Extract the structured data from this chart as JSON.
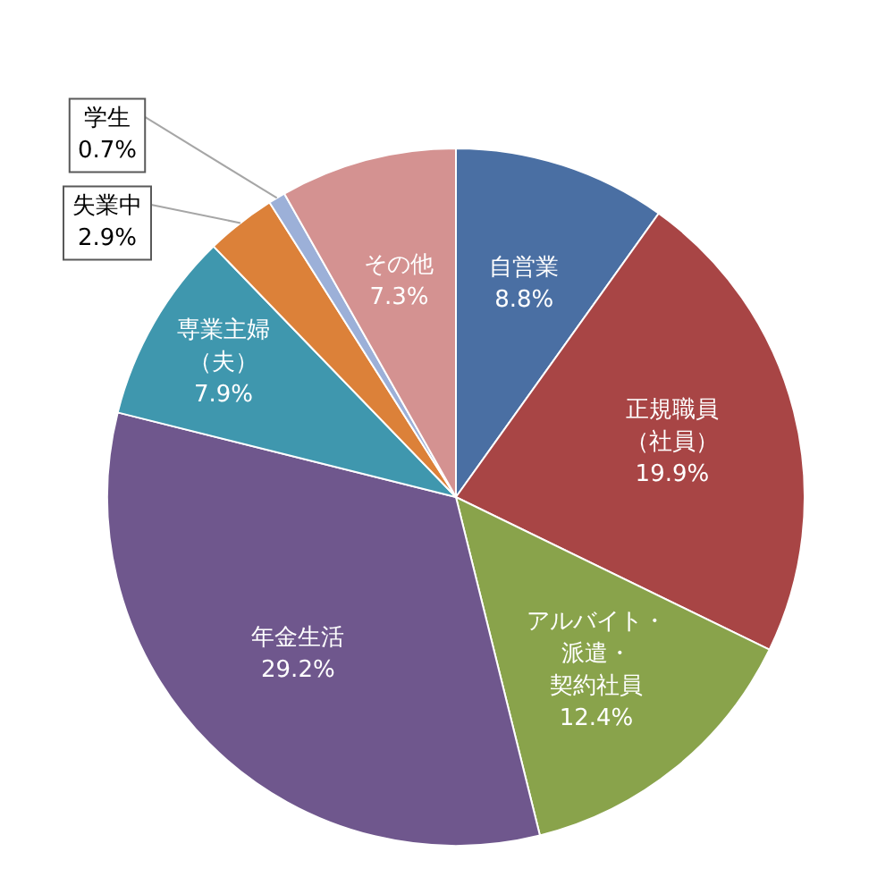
{
  "chart_data": {
    "type": "pie",
    "categories": [
      "自営業",
      "正規職員（社員）",
      "アルバイト・派遣・契約社員",
      "年金生活",
      "専業主婦（夫）",
      "失業中",
      "学生",
      "その他"
    ],
    "values": [
      8.8,
      19.9,
      12.4,
      29.2,
      7.9,
      2.9,
      0.7,
      7.3
    ],
    "value_labels": [
      "8.8%",
      "19.9%",
      "12.4%",
      "29.2%",
      "7.9%",
      "2.9%",
      "0.7%",
      "7.3%"
    ],
    "colors": [
      "#4a6fa3",
      "#a84545",
      "#89a34b",
      "#6f578d",
      "#3f97ae",
      "#dc8139",
      "#9cb0d8",
      "#d49291"
    ]
  }
}
